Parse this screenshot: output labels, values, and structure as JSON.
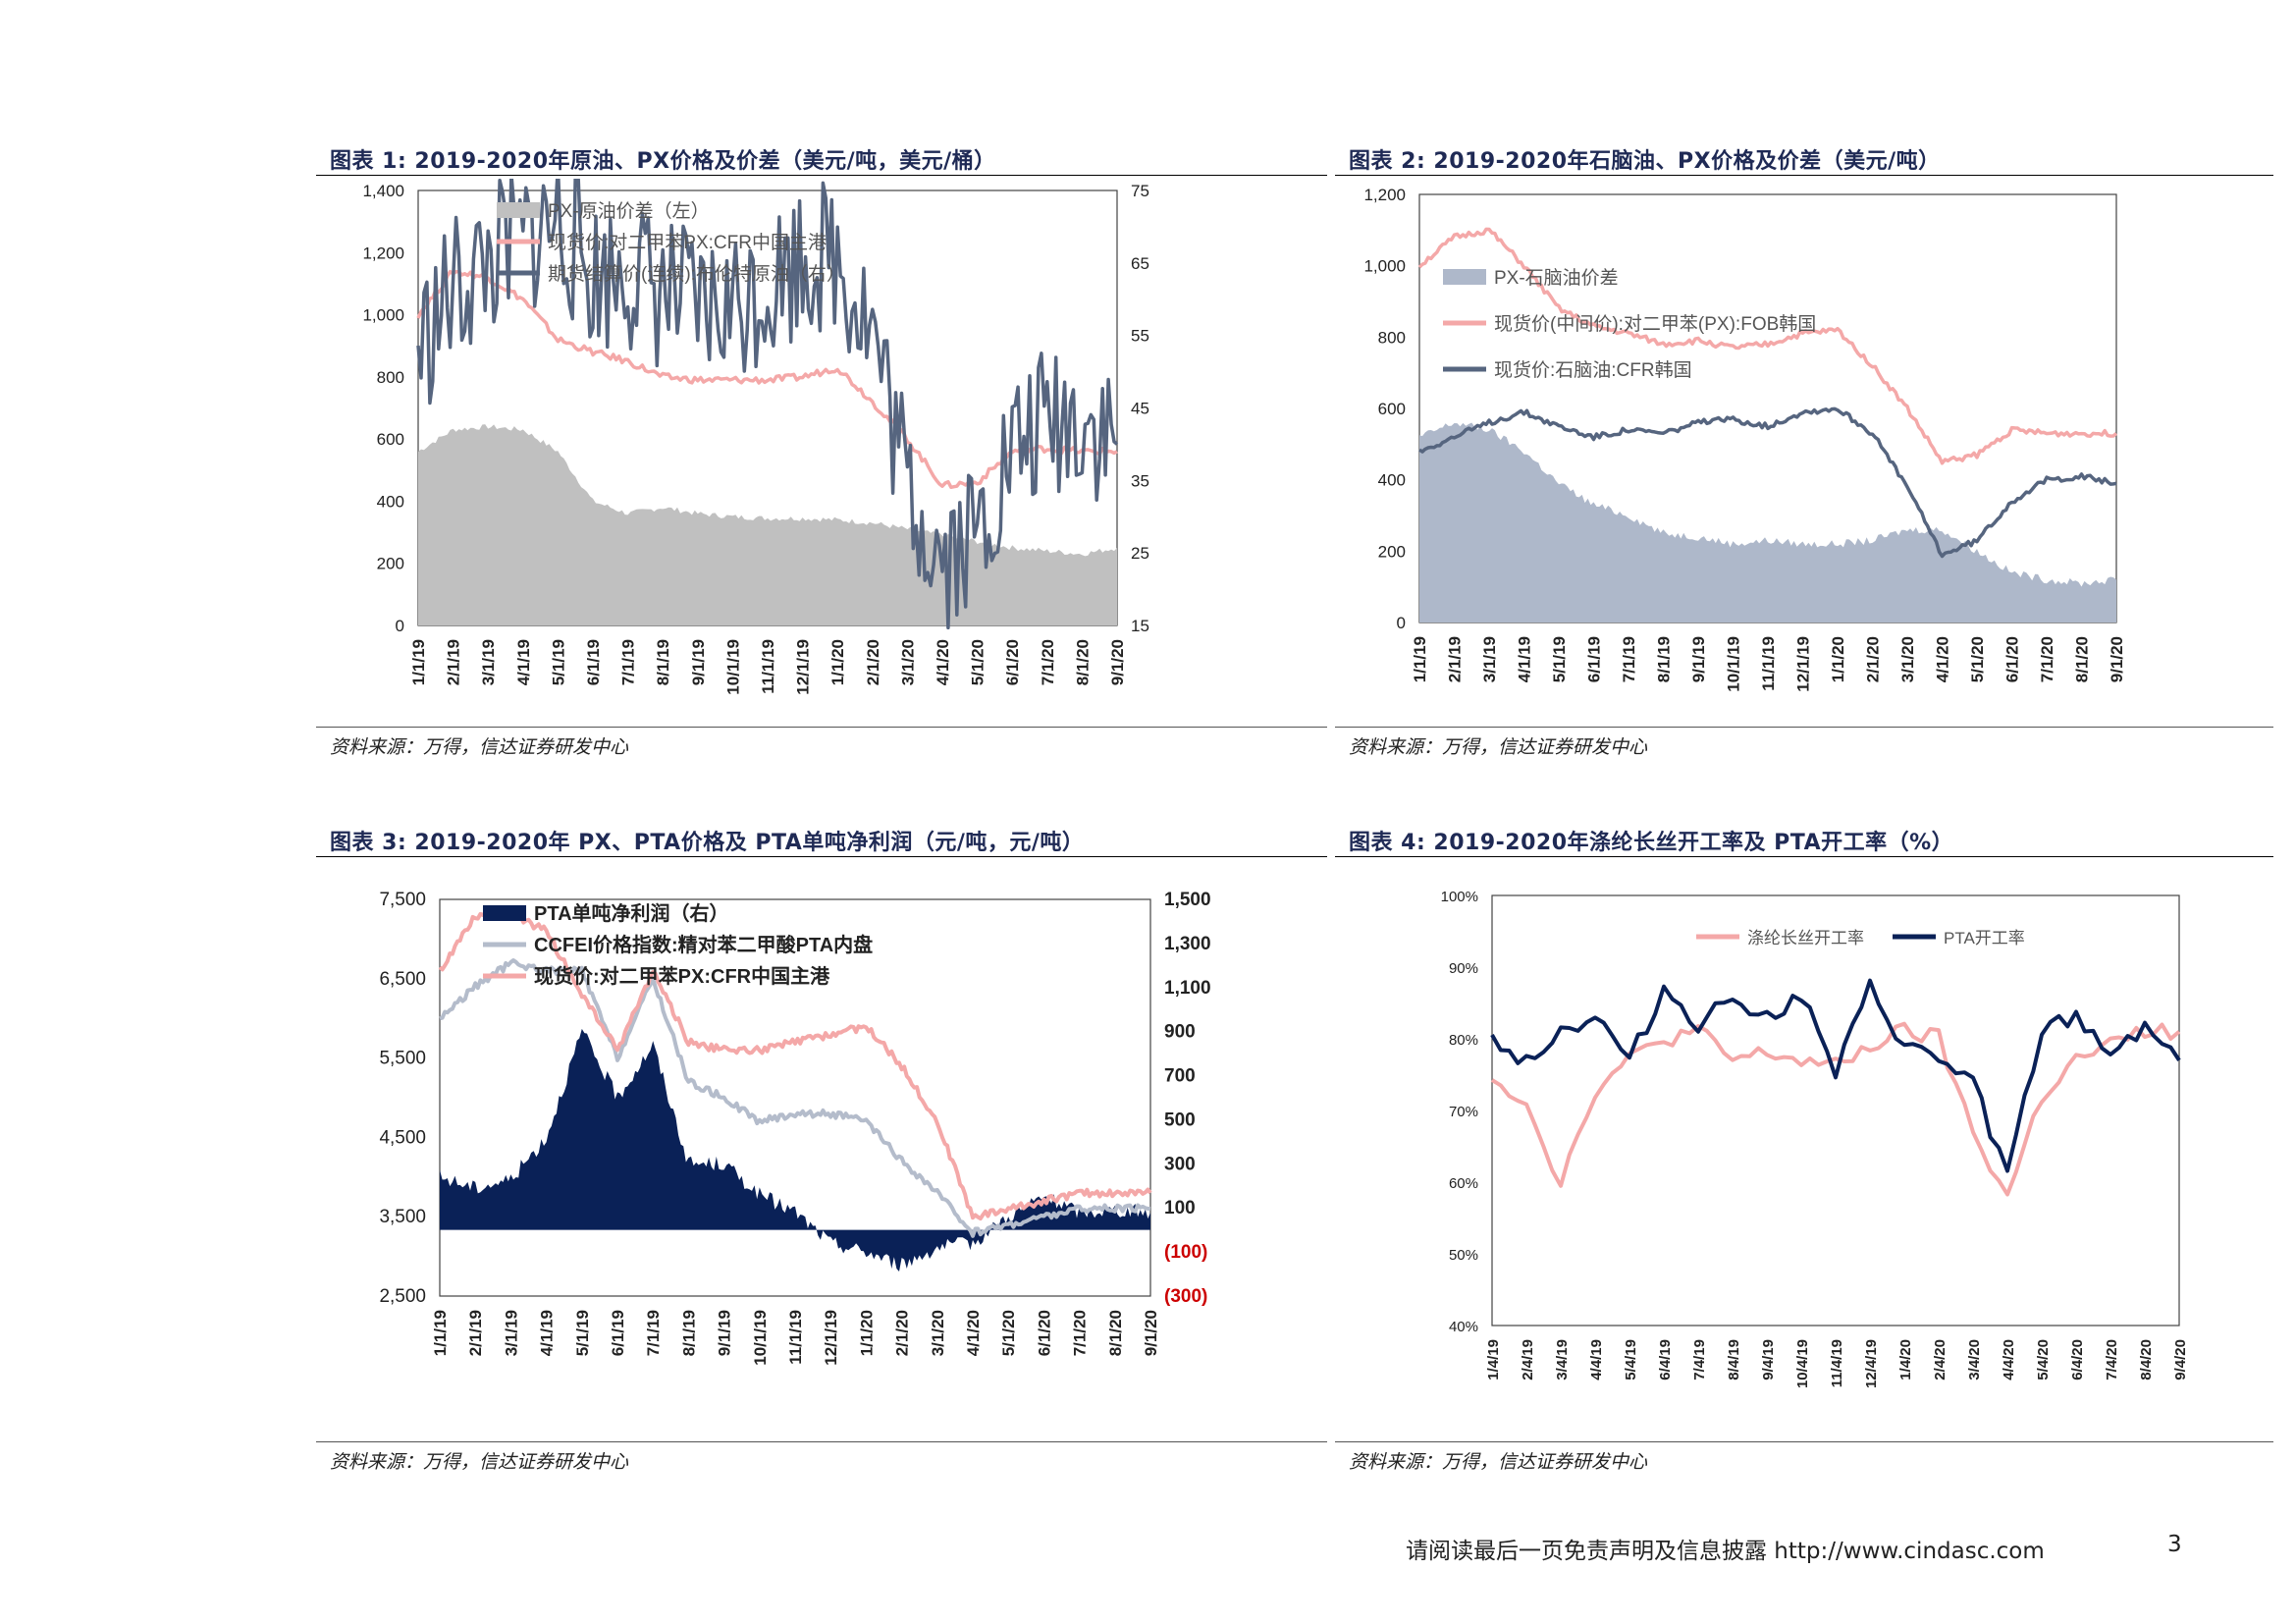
{
  "footer": {
    "disclaimer": "请阅读最后一页免责声明及信息披露 http://www.cindasc.com",
    "page": "3"
  },
  "charts": [
    {
      "title": "图表 1: 2019-2020年原油、PX价格及价差（美元/吨，美元/桶）",
      "source": "资料来源：万得，信达证券研发中心"
    },
    {
      "title": "图表 2: 2019-2020年石脑油、PX价格及价差（美元/吨）",
      "source": "资料来源：万得，信达证券研发中心"
    },
    {
      "title": "图表 3: 2019-2020年 PX、PTA价格及 PTA单吨净利润（元/吨，元/吨）",
      "source": "资料来源：万得，信达证券研发中心"
    },
    {
      "title": "图表 4:  2019-2020年涤纶长丝开工率及 PTA开工率（%）",
      "source": "资料来源：万得，信达证券研发中心"
    }
  ],
  "chart_data": [
    {
      "type": "line",
      "x_labels": [
        "1/1/19",
        "2/1/19",
        "3/1/19",
        "4/1/19",
        "5/1/19",
        "6/1/19",
        "7/1/19",
        "8/1/19",
        "9/1/19",
        "10/1/19",
        "11/1/19",
        "12/1/19",
        "1/1/20",
        "2/1/20",
        "3/1/20",
        "4/1/20",
        "5/1/20",
        "6/1/20",
        "7/1/20",
        "8/1/20",
        "9/1/20"
      ],
      "y_left": {
        "ticks": [
          "1,400",
          "1,200",
          "1,000",
          "800",
          "600",
          "400",
          "200",
          "0"
        ],
        "range": [
          0,
          1400
        ]
      },
      "y_right": {
        "ticks": [
          "75",
          "65",
          "55",
          "45",
          "35",
          "25",
          "15"
        ],
        "range": [
          15,
          75
        ]
      },
      "grid": false,
      "legend_position": "top-left",
      "series": [
        {
          "name": "PX-原油价差（左）",
          "kind": "area",
          "axis": "left",
          "color": "#c0c0c0",
          "values": [
            560,
            630,
            640,
            630,
            560,
            400,
            360,
            380,
            360,
            350,
            345,
            345,
            340,
            330,
            310,
            290,
            270,
            250,
            240,
            230,
            250
          ]
        },
        {
          "name": "现货价:对二甲苯PX:CFR中国主港",
          "kind": "line",
          "axis": "left",
          "color": "#f4a8a8",
          "values": [
            1000,
            1140,
            1120,
            1050,
            920,
            880,
            850,
            800,
            790,
            790,
            790,
            800,
            830,
            720,
            600,
            450,
            460,
            560,
            570,
            560,
            560
          ]
        },
        {
          "name": "期货结算价(连续):布伦特原油（右）",
          "kind": "line",
          "axis": "right",
          "color": "#56657f",
          "values": [
            53,
            61,
            65,
            68,
            71,
            63,
            64,
            61,
            58,
            59,
            62,
            66,
            66,
            56,
            34,
            25,
            28,
            39,
            43,
            44,
            40
          ]
        }
      ]
    },
    {
      "type": "line",
      "x_labels": [
        "1/1/19",
        "2/1/19",
        "3/1/19",
        "4/1/19",
        "5/1/19",
        "6/1/19",
        "7/1/19",
        "8/1/19",
        "9/1/19",
        "10/1/19",
        "11/1/19",
        "12/1/19",
        "1/1/20",
        "2/1/20",
        "3/1/20",
        "4/1/20",
        "5/1/20",
        "6/1/20",
        "7/1/20",
        "8/1/20",
        "9/1/20"
      ],
      "y_left": {
        "ticks": [
          "1,200",
          "1,000",
          "800",
          "600",
          "400",
          "200",
          "0"
        ],
        "range": [
          0,
          1200
        ]
      },
      "grid": false,
      "legend_position": "middle-left",
      "series": [
        {
          "name": "PX-石脑油价差",
          "kind": "area",
          "color": "#aeb8ca",
          "values": [
            520,
            560,
            540,
            480,
            390,
            330,
            300,
            250,
            240,
            220,
            230,
            220,
            220,
            230,
            260,
            260,
            200,
            140,
            120,
            110,
            120
          ]
        },
        {
          "name": "现货价(中间价):对二甲苯(PX):FOB韩国",
          "kind": "line",
          "color": "#f4a8a8",
          "values": [
            1000,
            1080,
            1100,
            1000,
            880,
            830,
            810,
            780,
            790,
            770,
            780,
            810,
            820,
            720,
            600,
            450,
            470,
            540,
            530,
            530,
            530
          ]
        },
        {
          "name": "现货价:石脑油:CFR韩国",
          "kind": "line",
          "color": "#56657f",
          "values": [
            480,
            520,
            560,
            590,
            550,
            520,
            540,
            530,
            560,
            570,
            550,
            590,
            600,
            530,
            380,
            190,
            230,
            340,
            400,
            410,
            390
          ]
        }
      ]
    },
    {
      "type": "line",
      "x_labels": [
        "1/1/19",
        "2/1/19",
        "3/1/19",
        "4/1/19",
        "5/1/19",
        "6/1/19",
        "7/1/19",
        "8/1/19",
        "9/1/19",
        "10/1/19",
        "11/1/19",
        "12/1/19",
        "1/1/20",
        "2/1/20",
        "3/1/20",
        "4/1/20",
        "5/1/20",
        "6/1/20",
        "7/1/20",
        "8/1/20",
        "9/1/20"
      ],
      "y_left": {
        "ticks": [
          "7,500",
          "6,500",
          "5,500",
          "4,500",
          "3,500",
          "2,500"
        ],
        "range": [
          2500,
          7500
        ]
      },
      "y_right": {
        "ticks": [
          "1,500",
          "1,300",
          "1,100",
          "900",
          "700",
          "500",
          "300",
          "100",
          "(100)",
          "(300)"
        ],
        "range": [
          -300,
          1500
        ]
      },
      "grid": false,
      "legend_position": "top-left",
      "series": [
        {
          "name": "PTA单吨净利润（右）",
          "kind": "area",
          "axis": "right",
          "color": "#0a2157",
          "values": [
            240,
            190,
            230,
            420,
            900,
            600,
            840,
            300,
            300,
            160,
            80,
            -60,
            -100,
            -160,
            -80,
            -60,
            60,
            150,
            80,
            90,
            80
          ]
        },
        {
          "name": "CCFEI价格指数:精对苯二甲酸PTA内盘",
          "kind": "line",
          "axis": "left",
          "color": "#b4bccb",
          "values": [
            6000,
            6400,
            6700,
            6600,
            6600,
            5500,
            6500,
            5200,
            5000,
            4700,
            4800,
            4800,
            4700,
            4200,
            3800,
            3300,
            3400,
            3500,
            3600,
            3600,
            3600
          ]
        },
        {
          "name": "现货价:对二甲苯PX:CFR中国主港",
          "kind": "line",
          "axis": "left",
          "color": "#f4a8a8",
          "values": [
            6600,
            7300,
            7300,
            7100,
            6300,
            5600,
            6600,
            5700,
            5600,
            5600,
            5700,
            5800,
            5900,
            5400,
            4700,
            3500,
            3600,
            3700,
            3800,
            3800,
            3800
          ]
        }
      ]
    },
    {
      "type": "line",
      "x_labels": [
        "1/4/19",
        "2/4/19",
        "3/4/19",
        "4/4/19",
        "5/4/19",
        "6/4/19",
        "7/4/19",
        "8/4/19",
        "9/4/19",
        "10/4/19",
        "11/4/19",
        "12/4/19",
        "1/4/20",
        "2/4/20",
        "3/4/20",
        "4/4/20",
        "5/4/20",
        "6/4/20",
        "7/4/20",
        "8/4/20",
        "9/4/20"
      ],
      "y_left": {
        "ticks": [
          "100%",
          "90%",
          "80%",
          "70%",
          "60%",
          "50%",
          "40%"
        ],
        "range": [
          40,
          100
        ]
      },
      "grid": false,
      "legend_position": "top",
      "series": [
        {
          "name": "涤纶长丝开工率",
          "kind": "line",
          "color": "#f4a8a8",
          "values": [
            75,
            71,
            60,
            73,
            77,
            80,
            81,
            77,
            78,
            77,
            76,
            79,
            81,
            80,
            67,
            58,
            72,
            77,
            79,
            81,
            81
          ]
        },
        {
          "name": "PTA开工率",
          "kind": "line",
          "color": "#0a2157",
          "values": [
            80,
            77,
            81,
            83,
            77,
            87,
            82,
            86,
            83,
            86,
            75,
            87,
            79,
            77,
            74,
            61,
            81,
            83,
            78,
            82,
            77
          ]
        }
      ]
    }
  ]
}
